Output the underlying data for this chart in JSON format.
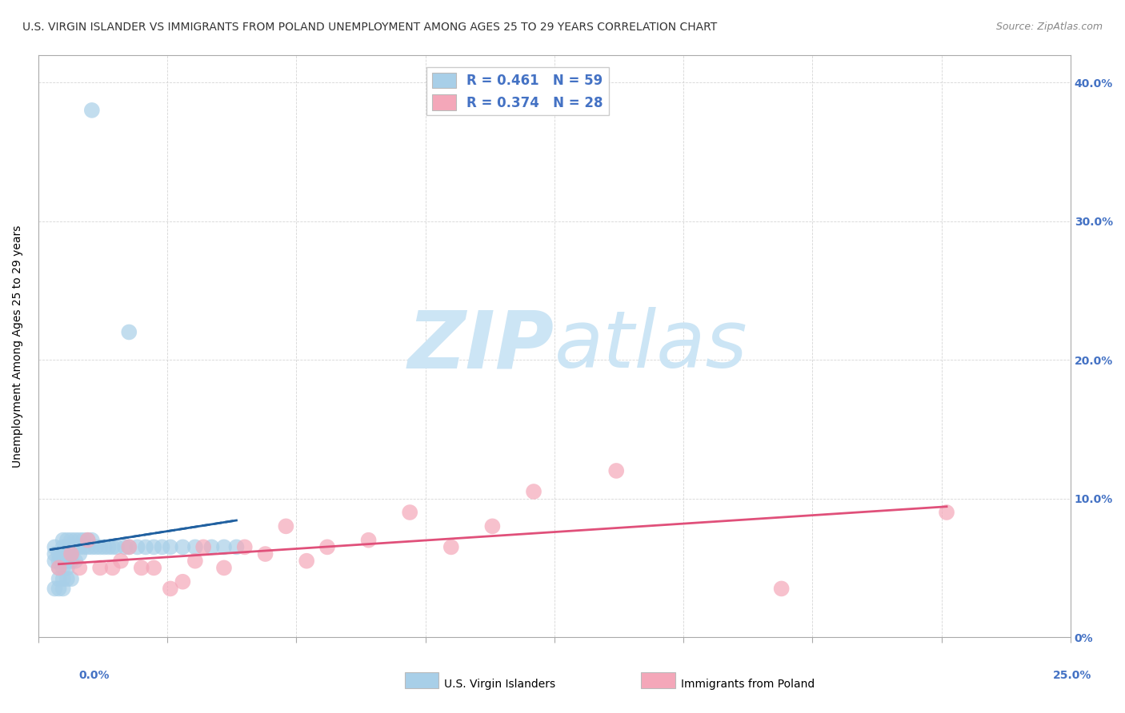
{
  "title": "U.S. VIRGIN ISLANDER VS IMMIGRANTS FROM POLAND UNEMPLOYMENT AMONG AGES 25 TO 29 YEARS CORRELATION CHART",
  "source": "Source: ZipAtlas.com",
  "ylabel": "Unemployment Among Ages 25 to 29 years",
  "xlim": [
    0.0,
    0.25
  ],
  "ylim": [
    0.0,
    0.42
  ],
  "legend_label_blue": "U.S. Virgin Islanders",
  "legend_label_pink": "Immigrants from Poland",
  "R_blue": 0.461,
  "N_blue": 59,
  "R_pink": 0.374,
  "N_pink": 28,
  "blue_color": "#a8cfe8",
  "blue_line_color": "#2060a0",
  "pink_color": "#f4a7b9",
  "pink_line_color": "#e0507a",
  "watermark_color": "#cce5f5",
  "yticks": [
    0.0,
    0.1,
    0.2,
    0.3,
    0.4
  ],
  "ytick_labels": [
    "0%",
    "10.0%",
    "20.0%",
    "30.0%",
    "40.0%"
  ],
  "blue_scatter_x": [
    0.004,
    0.004,
    0.004,
    0.005,
    0.005,
    0.005,
    0.006,
    0.006,
    0.006,
    0.006,
    0.006,
    0.007,
    0.007,
    0.007,
    0.007,
    0.007,
    0.008,
    0.008,
    0.008,
    0.008,
    0.009,
    0.009,
    0.009,
    0.01,
    0.01,
    0.01,
    0.011,
    0.011,
    0.012,
    0.012,
    0.013,
    0.013,
    0.014,
    0.015,
    0.016,
    0.017,
    0.018,
    0.019,
    0.021,
    0.022,
    0.024,
    0.026,
    0.028,
    0.03,
    0.032,
    0.035,
    0.038,
    0.042,
    0.045,
    0.048,
    0.005,
    0.006,
    0.007,
    0.008,
    0.004,
    0.005,
    0.006,
    0.013,
    0.022
  ],
  "blue_scatter_y": [
    0.055,
    0.06,
    0.065,
    0.05,
    0.055,
    0.06,
    0.05,
    0.055,
    0.06,
    0.065,
    0.07,
    0.05,
    0.055,
    0.06,
    0.065,
    0.07,
    0.055,
    0.06,
    0.065,
    0.07,
    0.055,
    0.065,
    0.07,
    0.06,
    0.065,
    0.07,
    0.065,
    0.07,
    0.065,
    0.07,
    0.065,
    0.07,
    0.065,
    0.065,
    0.065,
    0.065,
    0.065,
    0.065,
    0.065,
    0.065,
    0.065,
    0.065,
    0.065,
    0.065,
    0.065,
    0.065,
    0.065,
    0.065,
    0.065,
    0.065,
    0.042,
    0.042,
    0.042,
    0.042,
    0.035,
    0.035,
    0.035,
    0.38,
    0.22
  ],
  "pink_scatter_x": [
    0.005,
    0.008,
    0.01,
    0.012,
    0.015,
    0.018,
    0.02,
    0.022,
    0.025,
    0.028,
    0.032,
    0.035,
    0.038,
    0.04,
    0.045,
    0.05,
    0.055,
    0.06,
    0.065,
    0.07,
    0.08,
    0.09,
    0.1,
    0.11,
    0.12,
    0.14,
    0.18,
    0.22
  ],
  "pink_scatter_y": [
    0.05,
    0.06,
    0.05,
    0.07,
    0.05,
    0.05,
    0.055,
    0.065,
    0.05,
    0.05,
    0.035,
    0.04,
    0.055,
    0.065,
    0.05,
    0.065,
    0.06,
    0.08,
    0.055,
    0.065,
    0.07,
    0.09,
    0.065,
    0.08,
    0.105,
    0.12,
    0.035,
    0.09
  ],
  "title_fontsize": 10,
  "source_fontsize": 9
}
